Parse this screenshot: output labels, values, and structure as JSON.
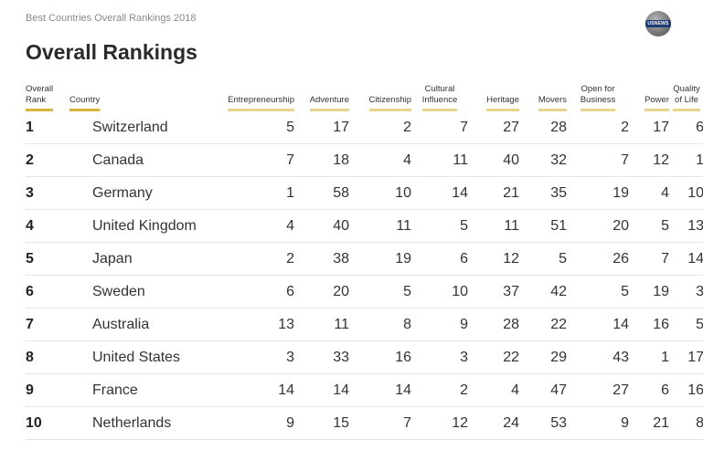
{
  "header": {
    "subtitle": "Best Countries Overall Rankings 2018",
    "title": "Overall Rankings",
    "logo_text": "USNEWS"
  },
  "chart_data": {
    "type": "table",
    "title": "Overall Rankings",
    "subtitle": "Best Countries Overall Rankings 2018",
    "columns": [
      {
        "key": "rank",
        "label": "Overall Rank"
      },
      {
        "key": "country",
        "label": "Country"
      },
      {
        "key": "entrepreneurship",
        "label": "Entrepreneurship"
      },
      {
        "key": "adventure",
        "label": "Adventure"
      },
      {
        "key": "citizenship",
        "label": "Citizenship"
      },
      {
        "key": "cultural_influence",
        "label": "Cultural Influence"
      },
      {
        "key": "heritage",
        "label": "Heritage"
      },
      {
        "key": "movers",
        "label": "Movers"
      },
      {
        "key": "open_for_business",
        "label": "Open for Business"
      },
      {
        "key": "power",
        "label": "Power"
      },
      {
        "key": "quality_of_life",
        "label": "Quality of Life"
      }
    ],
    "header_lines": [
      [
        "Overall",
        "Rank"
      ],
      [
        "Country"
      ],
      [
        "Entrepreneurship"
      ],
      [
        "Adventure"
      ],
      [
        "Citizenship"
      ],
      [
        "Cultural",
        "Influence"
      ],
      [
        "Heritage"
      ],
      [
        "Movers"
      ],
      [
        "Open for",
        "Business"
      ],
      [
        "Power"
      ],
      [
        "Quality",
        "of Life"
      ]
    ],
    "rows": [
      [
        "1",
        "Switzerland",
        5,
        17,
        2,
        7,
        27,
        28,
        2,
        17,
        6
      ],
      [
        "2",
        "Canada",
        7,
        18,
        4,
        11,
        40,
        32,
        7,
        12,
        1
      ],
      [
        "3",
        "Germany",
        1,
        58,
        10,
        14,
        21,
        35,
        19,
        4,
        10
      ],
      [
        "4",
        "United Kingdom",
        4,
        40,
        11,
        5,
        11,
        51,
        20,
        5,
        13
      ],
      [
        "5",
        "Japan",
        2,
        38,
        19,
        6,
        12,
        5,
        26,
        7,
        14
      ],
      [
        "6",
        "Sweden",
        6,
        20,
        5,
        10,
        37,
        42,
        5,
        19,
        3
      ],
      [
        "7",
        "Australia",
        13,
        11,
        8,
        9,
        28,
        22,
        14,
        16,
        5
      ],
      [
        "8",
        "United States",
        3,
        33,
        16,
        3,
        22,
        29,
        43,
        1,
        17
      ],
      [
        "9",
        "France",
        14,
        14,
        14,
        2,
        4,
        47,
        27,
        6,
        16
      ],
      [
        "10",
        "Netherlands",
        9,
        15,
        7,
        12,
        24,
        53,
        9,
        21,
        8
      ]
    ]
  },
  "colors": {
    "header_underline": "#e9d48a",
    "header_underline_accent": "#d8b43c",
    "row_divider": "#e4e4e4",
    "logo_band": "#1d3c78"
  }
}
